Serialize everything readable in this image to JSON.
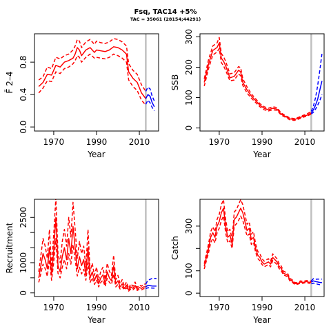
{
  "figure": {
    "title": "Fsq, TAC14 +5%",
    "subtitle": "TAC = 35061 (28154;44291)"
  },
  "chart_data": [
    {
      "type": "line",
      "panel": "F",
      "ylabel": "F̄ 2–4",
      "xlabel": "Year",
      "xlim": [
        1961,
        2019
      ],
      "ylim": [
        -0.05,
        1.15
      ],
      "xticks": [
        1970,
        1990,
        2010
      ],
      "yticks": [
        0.0,
        0.4,
        0.8
      ],
      "ytick_labels": [
        "0.0",
        "0.4",
        "0.8"
      ],
      "vline": 2013,
      "colors": {
        "hist": "#ff0000",
        "proj": "#0000ff",
        "vline": "#c0c0c0"
      },
      "hist": {
        "x": [
          1963,
          1965,
          1967,
          1969,
          1971,
          1973,
          1975,
          1977,
          1979,
          1980,
          1981,
          1982,
          1983,
          1985,
          1987,
          1989,
          1990,
          1992,
          1994,
          1996,
          1998,
          2000,
          2002,
          2004,
          2005,
          2007,
          2009,
          2011,
          2013
        ],
        "y": [
          0.5,
          0.55,
          0.65,
          0.64,
          0.76,
          0.74,
          0.8,
          0.82,
          0.85,
          0.9,
          0.98,
          0.95,
          0.88,
          0.95,
          0.98,
          0.92,
          0.95,
          0.94,
          0.93,
          0.95,
          0.99,
          0.98,
          0.95,
          0.9,
          0.68,
          0.6,
          0.55,
          0.42,
          0.35
        ],
        "lower": [
          0.42,
          0.48,
          0.57,
          0.56,
          0.68,
          0.66,
          0.72,
          0.74,
          0.78,
          0.82,
          0.88,
          0.86,
          0.8,
          0.86,
          0.9,
          0.85,
          0.86,
          0.85,
          0.84,
          0.86,
          0.9,
          0.88,
          0.85,
          0.8,
          0.58,
          0.5,
          0.45,
          0.33,
          0.27
        ],
        "upper": [
          0.58,
          0.62,
          0.74,
          0.72,
          0.86,
          0.84,
          0.88,
          0.9,
          0.95,
          1.0,
          1.08,
          1.06,
          0.98,
          1.05,
          1.08,
          1.02,
          1.06,
          1.04,
          1.03,
          1.05,
          1.09,
          1.08,
          1.05,
          1.0,
          0.78,
          0.7,
          0.65,
          0.52,
          0.44
        ]
      },
      "proj": {
        "x": [
          2013,
          2014,
          2015,
          2016,
          2017
        ],
        "y": [
          0.35,
          0.4,
          0.38,
          0.3,
          0.25
        ],
        "lower": [
          0.28,
          0.33,
          0.3,
          0.24,
          0.2
        ],
        "upper": [
          0.44,
          0.49,
          0.47,
          0.38,
          0.32
        ]
      }
    },
    {
      "type": "line",
      "panel": "SSB",
      "ylabel": "SSB",
      "xlabel": "Year",
      "xlim": [
        1961,
        2019
      ],
      "ylim": [
        -10,
        310
      ],
      "xticks": [
        1970,
        1990,
        2010
      ],
      "yticks": [
        0,
        100,
        200,
        300
      ],
      "ytick_labels": [
        "0",
        "100",
        "200",
        "300"
      ],
      "vline": 2013,
      "colors": {
        "hist": "#ff0000",
        "proj": "#0000ff",
        "vline": "#c0c0c0"
      },
      "hist": {
        "x": [
          1963,
          1965,
          1967,
          1969,
          1970,
          1971,
          1972,
          1973,
          1975,
          1977,
          1979,
          1980,
          1981,
          1983,
          1985,
          1987,
          1989,
          1991,
          1993,
          1995,
          1997,
          1999,
          2001,
          2003,
          2005,
          2007,
          2009,
          2011,
          2013
        ],
        "y": [
          150,
          210,
          255,
          265,
          280,
          230,
          220,
          205,
          165,
          170,
          190,
          185,
          150,
          125,
          105,
          90,
          75,
          65,
          60,
          65,
          62,
          45,
          38,
          30,
          28,
          32,
          38,
          42,
          50
        ],
        "lower": [
          138,
          195,
          240,
          250,
          262,
          215,
          205,
          190,
          155,
          158,
          178,
          172,
          140,
          115,
          98,
          84,
          70,
          60,
          56,
          60,
          58,
          42,
          35,
          27,
          25,
          29,
          35,
          39,
          46
        ],
        "upper": [
          162,
          225,
          270,
          280,
          298,
          245,
          235,
          220,
          178,
          182,
          202,
          198,
          162,
          135,
          112,
          96,
          80,
          70,
          65,
          70,
          67,
          49,
          41,
          33,
          31,
          35,
          41,
          46,
          55
        ]
      },
      "proj": {
        "x": [
          2013,
          2014,
          2015,
          2016,
          2017,
          2018
        ],
        "y": [
          50,
          60,
          75,
          95,
          125,
          155
        ],
        "lower": [
          46,
          52,
          62,
          75,
          90,
          110
        ],
        "upper": [
          55,
          72,
          100,
          140,
          190,
          245
        ]
      }
    },
    {
      "type": "line",
      "panel": "Recruitment",
      "ylabel": "Recruitment",
      "xlabel": "Year",
      "xlim": [
        1961,
        2019
      ],
      "ylim": [
        -120,
        3100
      ],
      "xticks": [
        1970,
        1990,
        2010
      ],
      "yticks": [
        0,
        1000,
        2500
      ],
      "ytick_labels": [
        "0",
        "1000",
        "2500"
      ],
      "minor_yticks": [
        500,
        1500,
        2000
      ],
      "vline": 2013,
      "colors": {
        "hist": "#ff0000",
        "proj": "#0000ff",
        "vline": "#c0c0c0"
      },
      "hist": {
        "x": [
          1963,
          1964,
          1965,
          1966,
          1967,
          1968,
          1969,
          1970,
          1971,
          1972,
          1973,
          1974,
          1975,
          1976,
          1977,
          1978,
          1979,
          1980,
          1981,
          1982,
          1983,
          1984,
          1985,
          1986,
          1987,
          1988,
          1989,
          1990,
          1991,
          1992,
          1993,
          1994,
          1995,
          1996,
          1997,
          1998,
          1999,
          2000,
          2001,
          2002,
          2003,
          2004,
          2005,
          2006,
          2007,
          2008,
          2009,
          2010,
          2011,
          2012,
          2013
        ],
        "y": [
          500,
          900,
          1300,
          1100,
          800,
          1500,
          600,
          1400,
          2500,
          900,
          700,
          1200,
          1500,
          1100,
          1800,
          1300,
          2200,
          1500,
          800,
          1200,
          900,
          1100,
          600,
          1500,
          500,
          700,
          400,
          600,
          300,
          500,
          600,
          300,
          700,
          500,
          400,
          900,
          300,
          400,
          200,
          300,
          150,
          250,
          100,
          200,
          150,
          250,
          120,
          180,
          150,
          200,
          200
        ],
        "lower": [
          350,
          650,
          950,
          800,
          550,
          1100,
          420,
          1000,
          1800,
          650,
          500,
          850,
          1100,
          800,
          1300,
          950,
          1600,
          1100,
          560,
          850,
          630,
          780,
          420,
          1000,
          350,
          500,
          280,
          420,
          200,
          350,
          420,
          210,
          480,
          350,
          280,
          620,
          200,
          280,
          130,
          200,
          100,
          170,
          60,
          130,
          100,
          170,
          80,
          120,
          100,
          140,
          140
        ],
        "upper": [
          700,
          1250,
          1800,
          1550,
          1150,
          2100,
          850,
          1950,
          3150,
          1300,
          1000,
          1700,
          2100,
          1550,
          2500,
          1850,
          3000,
          2100,
          1150,
          1700,
          1300,
          1550,
          850,
          2100,
          720,
          980,
          580,
          850,
          430,
          720,
          850,
          440,
          980,
          720,
          580,
          1250,
          440,
          580,
          300,
          440,
          220,
          360,
          150,
          300,
          220,
          360,
          180,
          260,
          220,
          290,
          290
        ]
      },
      "proj": {
        "x": [
          2013,
          2014,
          2016,
          2018
        ],
        "y": [
          200,
          250,
          230,
          225
        ],
        "lower": [
          140,
          170,
          160,
          155
        ],
        "upper": [
          290,
          420,
          480,
          480
        ]
      }
    },
    {
      "type": "line",
      "panel": "Catch",
      "ylabel": "Catch",
      "xlabel": "Year",
      "xlim": [
        1961,
        2019
      ],
      "ylim": [
        -15,
        420
      ],
      "xticks": [
        1970,
        1990,
        2010
      ],
      "yticks": [
        0,
        100,
        300
      ],
      "ytick_labels": [
        "0",
        "100",
        "300"
      ],
      "minor_yticks": [
        200
      ],
      "vline": 2013,
      "colors": {
        "hist": "#ff0000",
        "proj": "#0000ff",
        "vline": "#c0c0c0"
      },
      "hist": {
        "x": [
          1963,
          1964,
          1965,
          1966,
          1967,
          1968,
          1969,
          1970,
          1971,
          1972,
          1973,
          1974,
          1975,
          1976,
          1977,
          1978,
          1979,
          1980,
          1981,
          1982,
          1983,
          1984,
          1985,
          1986,
          1987,
          1988,
          1989,
          1990,
          1991,
          1992,
          1993,
          1994,
          1995,
          1996,
          1997,
          1998,
          1999,
          2000,
          2001,
          2002,
          2003,
          2004,
          2005,
          2006,
          2007,
          2008,
          2009,
          2010,
          2011,
          2012,
          2013
        ],
        "y": [
          120,
          160,
          200,
          250,
          270,
          250,
          300,
          320,
          360,
          380,
          300,
          250,
          260,
          220,
          330,
          340,
          360,
          380,
          360,
          320,
          280,
          290,
          240,
          250,
          200,
          170,
          160,
          140,
          130,
          135,
          140,
          130,
          160,
          150,
          140,
          120,
          110,
          90,
          85,
          80,
          60,
          55,
          45,
          42,
          45,
          50,
          48,
          50,
          52,
          48,
          50
        ],
        "lower": [
          108,
          145,
          180,
          225,
          245,
          225,
          270,
          290,
          325,
          345,
          270,
          225,
          235,
          200,
          300,
          310,
          325,
          345,
          325,
          290,
          255,
          265,
          218,
          228,
          182,
          155,
          145,
          128,
          118,
          123,
          128,
          118,
          146,
          137,
          128,
          110,
          100,
          82,
          78,
          73,
          55,
          50,
          41,
          38,
          41,
          46,
          44,
          46,
          48,
          44,
          46
        ],
        "upper": [
          132,
          176,
          220,
          275,
          297,
          275,
          330,
          352,
          396,
          418,
          330,
          275,
          286,
          242,
          363,
          374,
          396,
          418,
          396,
          352,
          308,
          319,
          264,
          275,
          220,
          187,
          176,
          154,
          143,
          149,
          154,
          143,
          176,
          165,
          154,
          132,
          121,
          99,
          94,
          88,
          66,
          61,
          50,
          46,
          50,
          55,
          53,
          55,
          57,
          53,
          55
        ]
      },
      "proj": {
        "x": [
          2013,
          2014,
          2015,
          2016,
          2017,
          2018
        ],
        "y": [
          50,
          55,
          52,
          50,
          48,
          47
        ],
        "lower": [
          42,
          45,
          43,
          40,
          38,
          37
        ],
        "upper": [
          55,
          65,
          62,
          63,
          63,
          63
        ]
      }
    }
  ]
}
